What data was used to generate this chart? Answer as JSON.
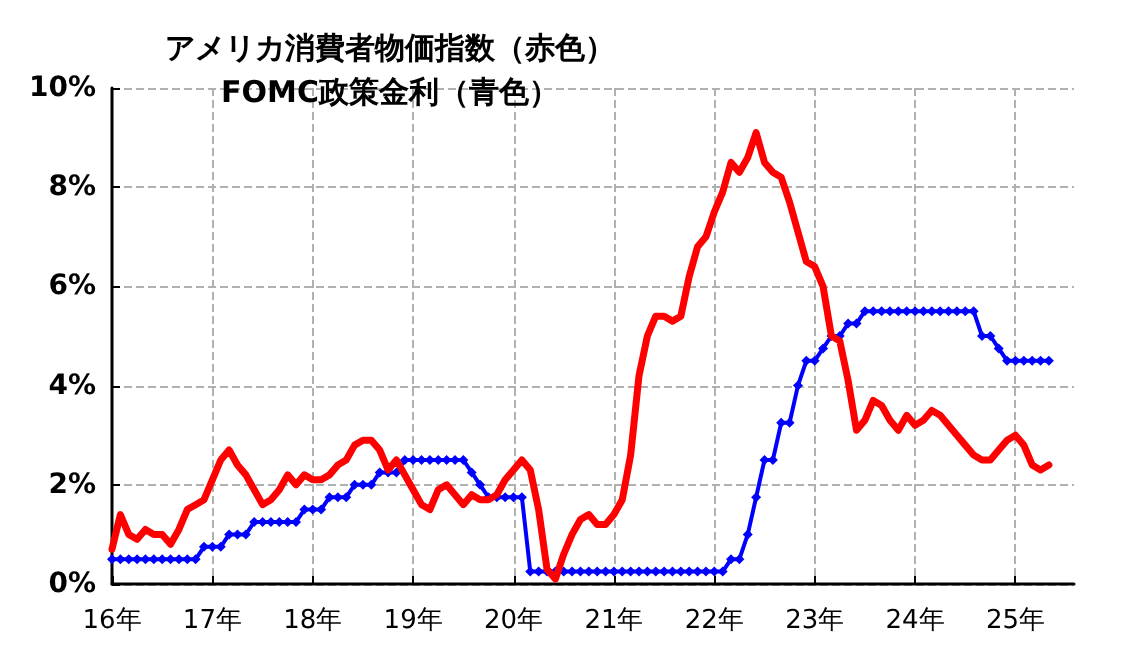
{
  "chart_data": {
    "type": "line",
    "title": "アメリカ消費者物価指数（赤色）\nFOMC政策金利（青色）",
    "categories": [
      "16年",
      null,
      null,
      null,
      null,
      null,
      null,
      null,
      null,
      null,
      null,
      null,
      "17年",
      null,
      null,
      null,
      null,
      null,
      null,
      null,
      null,
      null,
      null,
      null,
      "18年",
      null,
      null,
      null,
      null,
      null,
      null,
      null,
      null,
      null,
      null,
      null,
      "19年",
      null,
      null,
      null,
      null,
      null,
      null,
      null,
      null,
      null,
      null,
      null,
      "20年",
      null,
      null,
      null,
      null,
      null,
      null,
      null,
      null,
      null,
      null,
      null,
      "21年",
      null,
      null,
      null,
      null,
      null,
      null,
      null,
      null,
      null,
      null,
      null,
      "22年",
      null,
      null,
      null,
      null,
      null,
      null,
      null,
      null,
      null,
      null,
      null,
      "23年",
      null,
      null,
      null,
      null,
      null,
      null,
      null,
      null,
      null,
      null,
      null,
      "24年",
      null,
      null,
      null,
      null,
      null,
      null,
      null,
      null,
      null,
      null,
      null,
      "25年",
      null,
      null,
      null,
      null,
      null,
      null,
      null
    ],
    "series": [
      {
        "color": "#ff0000",
        "marker": "none",
        "values": [
          0.7,
          1.4,
          1.0,
          0.9,
          1.1,
          1.0,
          1.0,
          0.8,
          1.1,
          1.5,
          1.6,
          1.7,
          2.1,
          2.5,
          2.7,
          2.4,
          2.2,
          1.9,
          1.6,
          1.7,
          1.9,
          2.2,
          2.0,
          2.2,
          2.1,
          2.1,
          2.2,
          2.4,
          2.5,
          2.8,
          2.9,
          2.9,
          2.7,
          2.3,
          2.5,
          2.2,
          1.9,
          1.6,
          1.5,
          1.9,
          2.0,
          1.8,
          1.6,
          1.8,
          1.7,
          1.7,
          1.8,
          2.1,
          2.3,
          2.5,
          2.3,
          1.5,
          0.3,
          0.1,
          0.6,
          1.0,
          1.3,
          1.4,
          1.2,
          1.2,
          1.4,
          1.7,
          2.6,
          4.2,
          5.0,
          5.4,
          5.4,
          5.3,
          5.4,
          6.2,
          6.8,
          7.0,
          7.5,
          7.9,
          8.5,
          8.3,
          8.6,
          9.1,
          8.5,
          8.3,
          8.2,
          7.7,
          7.1,
          6.5,
          6.4,
          6.0,
          5.0,
          4.9,
          4.1,
          3.1,
          3.3,
          3.7,
          3.6,
          3.3,
          3.1,
          3.4,
          3.2,
          3.3,
          3.5,
          3.4,
          3.2,
          3.0,
          2.8,
          2.6,
          2.5,
          2.5,
          2.7,
          2.9,
          3.0,
          2.8,
          2.4,
          2.3,
          2.4,
          null,
          null,
          null
        ]
      },
      {
        "color": "#0000ff",
        "marker": "diamond",
        "values": [
          0.5,
          0.5,
          0.5,
          0.5,
          0.5,
          0.5,
          0.5,
          0.5,
          0.5,
          0.5,
          0.5,
          0.75,
          0.75,
          0.75,
          1.0,
          1.0,
          1.0,
          1.25,
          1.25,
          1.25,
          1.25,
          1.25,
          1.25,
          1.5,
          1.5,
          1.5,
          1.75,
          1.75,
          1.75,
          2.0,
          2.0,
          2.0,
          2.25,
          2.25,
          2.25,
          2.5,
          2.5,
          2.5,
          2.5,
          2.5,
          2.5,
          2.5,
          2.5,
          2.25,
          2.0,
          1.75,
          1.75,
          1.75,
          1.75,
          1.75,
          0.25,
          0.25,
          0.25,
          0.25,
          0.25,
          0.25,
          0.25,
          0.25,
          0.25,
          0.25,
          0.25,
          0.25,
          0.25,
          0.25,
          0.25,
          0.25,
          0.25,
          0.25,
          0.25,
          0.25,
          0.25,
          0.25,
          0.25,
          0.25,
          0.5,
          0.5,
          1.0,
          1.75,
          2.5,
          2.5,
          3.25,
          3.25,
          4.0,
          4.5,
          4.5,
          4.75,
          5.0,
          5.0,
          5.25,
          5.25,
          5.5,
          5.5,
          5.5,
          5.5,
          5.5,
          5.5,
          5.5,
          5.5,
          5.5,
          5.5,
          5.5,
          5.5,
          5.5,
          5.5,
          5.0,
          5.0,
          4.75,
          4.5,
          4.5,
          4.5,
          4.5,
          4.5,
          4.5,
          null,
          null,
          null
        ]
      }
    ],
    "ylim": [
      0,
      10
    ],
    "yticks": [
      {
        "value": 0,
        "label": "0%"
      },
      {
        "value": 2,
        "label": "2%"
      },
      {
        "value": 4,
        "label": "4%"
      },
      {
        "value": 6,
        "label": "6%"
      },
      {
        "value": 8,
        "label": "8%"
      },
      {
        "value": 10,
        "label": "10%"
      }
    ],
    "grid": true
  }
}
